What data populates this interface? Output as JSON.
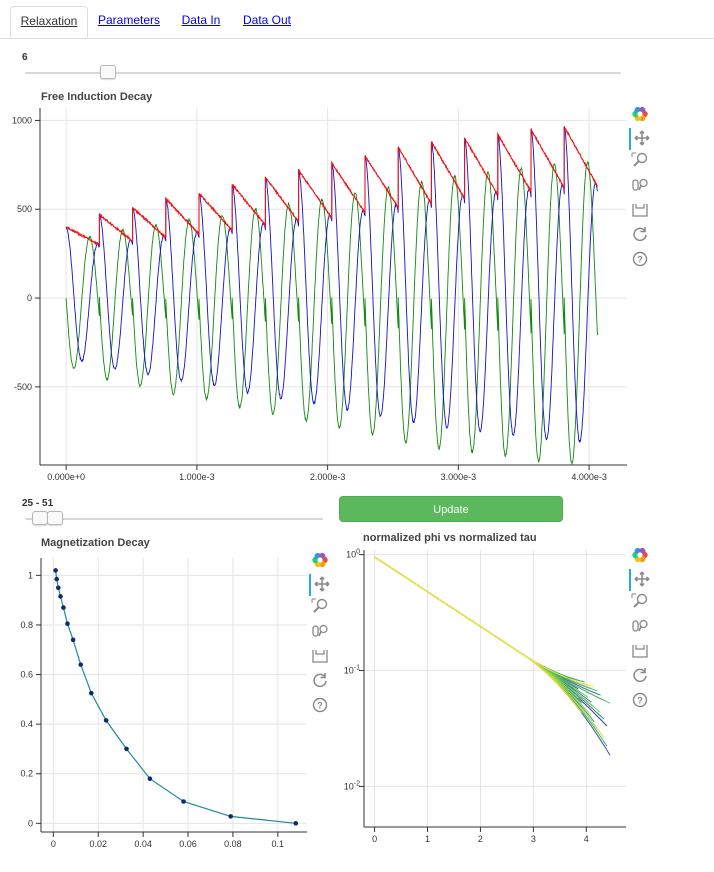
{
  "tabs": [
    {
      "label": "Relaxation",
      "active": true
    },
    {
      "label": "Parameters",
      "active": false
    },
    {
      "label": "Data In",
      "active": false
    },
    {
      "label": "Data Out",
      "active": false
    }
  ],
  "top_slider": {
    "value_label": "6",
    "fraction": 0.14
  },
  "range_slider": {
    "value_label": "25 - 51",
    "start_fraction": 0.05,
    "end_fraction": 0.1
  },
  "update_button": {
    "label": "Update"
  },
  "toolbar_icons": [
    "bokeh-logo-icon",
    "pan-icon",
    "box-zoom-icon",
    "wheel-zoom-icon",
    "save-icon",
    "reset-icon",
    "help-icon"
  ],
  "colors": {
    "red": "#ee1111",
    "blue": "#1111cc",
    "green": "#118811",
    "teal": "#1f8a9a",
    "accent": "#26aae1",
    "button": "#5cb85c"
  },
  "chart_data": [
    {
      "type": "line",
      "title": "Free Induction Decay",
      "xlim": [
        -0.0002,
        0.00429
      ],
      "ylim": [
        -940,
        1070
      ],
      "x_ticks": [
        0,
        0.001,
        0.002,
        0.003,
        0.004
      ],
      "x_tick_labels": [
        "0.000e+0",
        "1.000e-3",
        "2.000e-3",
        "3.000e-3",
        "4.000e-3"
      ],
      "y_ticks": [
        -500,
        0,
        500,
        1000
      ],
      "y_tick_labels": [
        "-500",
        "0",
        "500",
        "1000"
      ],
      "period": 0.000254,
      "cycles": 16,
      "envelope_start": [
        400,
        470,
        510,
        560,
        590,
        640,
        680,
        720,
        760,
        800,
        850,
        880,
        900,
        920,
        950,
        965
      ],
      "envelope_end": [
        300,
        320,
        340,
        360,
        380,
        410,
        430,
        450,
        480,
        510,
        530,
        560,
        580,
        600,
        620,
        630
      ],
      "series": [
        {
          "color": "red"
        },
        {
          "color": "blue"
        },
        {
          "color": "green"
        }
      ]
    },
    {
      "type": "line",
      "title": "Magnetization Decay",
      "xlim": [
        -0.0055,
        0.113
      ],
      "ylim": [
        -0.035,
        1.07
      ],
      "x_ticks": [
        0,
        0.02,
        0.04,
        0.06,
        0.08,
        0.1
      ],
      "x_tick_labels": [
        "0",
        "0.02",
        "0.04",
        "0.06",
        "0.08",
        "0.1"
      ],
      "y_ticks": [
        0,
        0.2,
        0.4,
        0.6,
        0.8,
        1
      ],
      "y_tick_labels": [
        "0",
        "0.2",
        "0.4",
        "0.6",
        "0.8",
        "1"
      ],
      "x": [
        0.001,
        0.0015,
        0.0022,
        0.0032,
        0.0045,
        0.0063,
        0.0088,
        0.0122,
        0.0169,
        0.0235,
        0.0326,
        0.043,
        0.058,
        0.079,
        0.108
      ],
      "y": [
        1.02,
        0.985,
        0.95,
        0.915,
        0.87,
        0.805,
        0.74,
        0.64,
        0.525,
        0.415,
        0.3,
        0.18,
        0.088,
        0.028,
        0.0
      ]
    },
    {
      "type": "line",
      "title": "normalized phi vs normalized tau",
      "xlim": [
        -0.2,
        4.75
      ],
      "ylim_log10": [
        -2.35,
        0.04
      ],
      "y_scale": "log",
      "x_ticks": [
        0,
        1,
        2,
        3,
        4
      ],
      "x_tick_labels": [
        "0",
        "1",
        "2",
        "3",
        "4"
      ],
      "y_ticks_log10": [
        0,
        -1,
        -2
      ],
      "y_tick_labels": [
        "10^0",
        "10^-1",
        "10^-2"
      ],
      "curves": 27,
      "palette": [
        "#440154",
        "#3b528b",
        "#21918c",
        "#5ec962",
        "#fde725"
      ]
    }
  ]
}
